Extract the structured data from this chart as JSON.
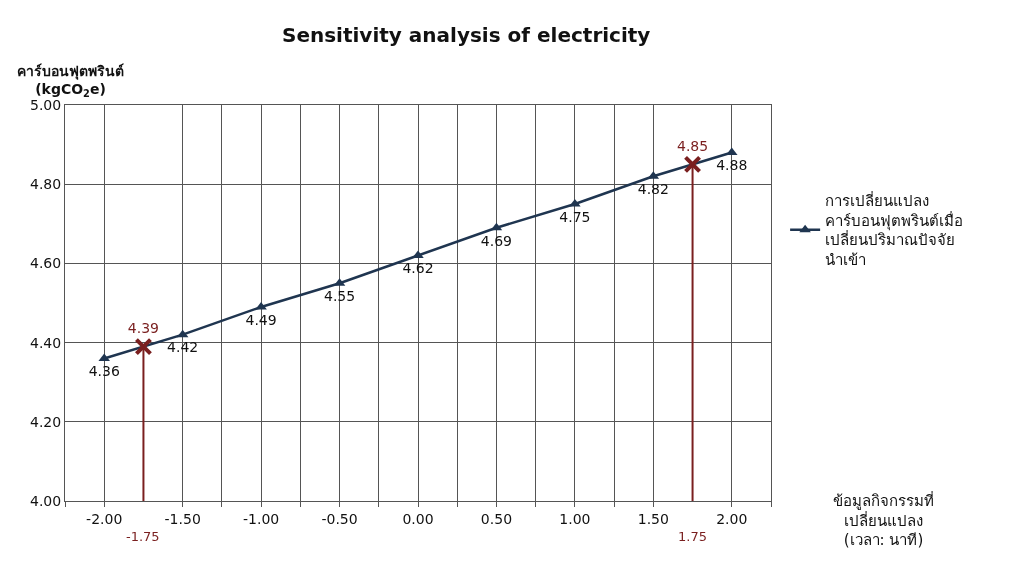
{
  "chart_data": {
    "type": "line",
    "title": "Sensitivity analysis of electricity",
    "ylabel": "คาร์บอนฟุตพรินต์\n(kgCO$_{2}$e)",
    "annotations": [
      "ข้อมูลกิจกรรมที่\nเปลี่ยนแปลง\n(เวลา: นาที)"
    ],
    "series": [
      {
        "name": "การเปลี่ยนแปลง\nคาร์บอนฟุตพรินต์เมื่อ\nเปลี่ยนปริมาณปัจจัย\nนำเข้า",
        "color": "#1f3550",
        "marker": "triangle",
        "x": [
          -2.0,
          -1.5,
          -1.0,
          -0.5,
          0.0,
          0.5,
          1.0,
          1.5,
          2.0
        ],
        "values": [
          4.36,
          4.42,
          4.49,
          4.55,
          4.62,
          4.69,
          4.75,
          4.82,
          4.88
        ],
        "value_labels": [
          "4.36",
          "4.42",
          "4.49",
          "4.55",
          "4.62",
          "4.69",
          "4.75",
          "4.82",
          "4.88"
        ]
      },
      {
        "type": "scatter",
        "color": "#7a1f1f",
        "marker": "cross",
        "x": [
          -1.75,
          1.75
        ],
        "values": [
          4.39,
          4.85
        ],
        "value_labels": [
          "4.39",
          "4.85"
        ]
      }
    ],
    "ref_lines": [
      {
        "axis": "x",
        "value": -1.75,
        "label": "-1.75",
        "color": "#7a1f1f"
      },
      {
        "axis": "x",
        "value": 1.75,
        "label": "1.75",
        "color": "#7a1f1f"
      }
    ],
    "xlim": [
      -2.25,
      2.25
    ],
    "xticks": [
      {
        "value": -2.25,
        "label": null
      },
      {
        "value": -2.0,
        "label": "-2.00"
      },
      {
        "value": -1.5,
        "label": "-1.50"
      },
      {
        "value": -1.25,
        "label": null
      },
      {
        "value": -1.0,
        "label": "-1.00"
      },
      {
        "value": -0.75,
        "label": null
      },
      {
        "value": -0.5,
        "label": "-0.50"
      },
      {
        "value": -0.25,
        "label": null
      },
      {
        "value": 0.0,
        "label": "0.00"
      },
      {
        "value": 0.25,
        "label": null
      },
      {
        "value": 0.5,
        "label": "0.50"
      },
      {
        "value": 0.75,
        "label": null
      },
      {
        "value": 1.0,
        "label": "1.00"
      },
      {
        "value": 1.25,
        "label": null
      },
      {
        "value": 1.5,
        "label": "1.50"
      },
      {
        "value": 2.0,
        "label": "2.00"
      },
      {
        "value": 2.25,
        "label": null
      }
    ],
    "ylim": [
      4.0,
      5.0
    ],
    "yticks": [
      {
        "value": 4.0,
        "label": "4.00"
      },
      {
        "value": 4.2,
        "label": "4.20"
      },
      {
        "value": 4.4,
        "label": "4.40"
      },
      {
        "value": 4.6,
        "label": "4.60"
      },
      {
        "value": 4.8,
        "label": "4.80"
      },
      {
        "value": 5.0,
        "label": "5.00"
      }
    ],
    "grid": true,
    "legend": "right",
    "line_style": "solid"
  }
}
